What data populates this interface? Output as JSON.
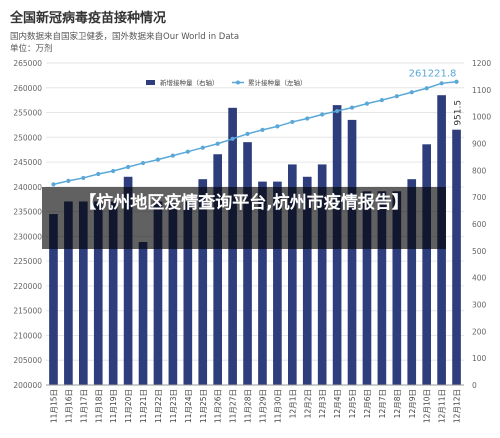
{
  "header": {
    "title": "全国新冠病毒疫苗接种情况",
    "source": "国内数据来自国家卫健委，国外数据来自Our World in Data",
    "unit": "单位：万剂"
  },
  "overlay": {
    "text": "【杭州地区疫情查询平台,杭州市疫情报告】"
  },
  "colors": {
    "bar": "#2e3e7c",
    "line": "#5aa8d8",
    "highlight": "#5aa8d8",
    "grid": "#e6e6e6",
    "text": "#666666"
  },
  "chart_data": {
    "type": "bar",
    "legend_position": "top-right",
    "grid": true,
    "categories": [
      "11月15日",
      "11月16日",
      "11月17日",
      "11月18日",
      "11月19日",
      "11月20日",
      "11月21日",
      "11月22日",
      "11月23日",
      "11月24日",
      "11月25日",
      "11月26日",
      "11月27日",
      "11月28日",
      "11月29日",
      "11月30日",
      "12月1日",
      "12月2日",
      "12月3日",
      "12月4日",
      "12月5日",
      "12月6日",
      "12月7日",
      "12月8日",
      "12月9日",
      "12月10日",
      "12月11日",
      "12月12日"
    ],
    "ylim_left": [
      200000,
      265000
    ],
    "yticks_left": [
      "200000",
      "205000",
      "210000",
      "215000",
      "220000",
      "225000",
      "230000",
      "235000",
      "240000",
      "245000",
      "250000",
      "255000",
      "260000",
      "265000"
    ],
    "ylim_right": [
      0,
      1200
    ],
    "yticks_right": [
      "0",
      "100",
      "200",
      "300",
      "400",
      "500",
      "600",
      "700",
      "800",
      "900",
      "1000",
      "1100",
      "1200"
    ],
    "series": [
      {
        "name": "新增接种量（右轴）",
        "axis": "right",
        "values": [
          637,
          684,
          684,
          684,
          684,
          776,
          533,
          684,
          684,
          684,
          767,
          860,
          1033,
          905,
          758,
          758,
          822,
          776,
          822,
          1043,
          988,
          722,
          722,
          722,
          767,
          897,
          1080,
          951.5
        ]
      },
      {
        "name": "累计接种量（左轴）",
        "axis": "left",
        "values": [
          240500,
          241200,
          241800,
          242600,
          243200,
          244000,
          244800,
          245500,
          246300,
          247100,
          247900,
          248700,
          249700,
          250700,
          251500,
          252200,
          253100,
          253800,
          254600,
          255300,
          256000,
          256800,
          257500,
          258300,
          259100,
          259900,
          260900,
          261221.8
        ]
      }
    ],
    "annotations": {
      "bar_last_label": "951.5",
      "line_last_label": "261221.8"
    }
  }
}
